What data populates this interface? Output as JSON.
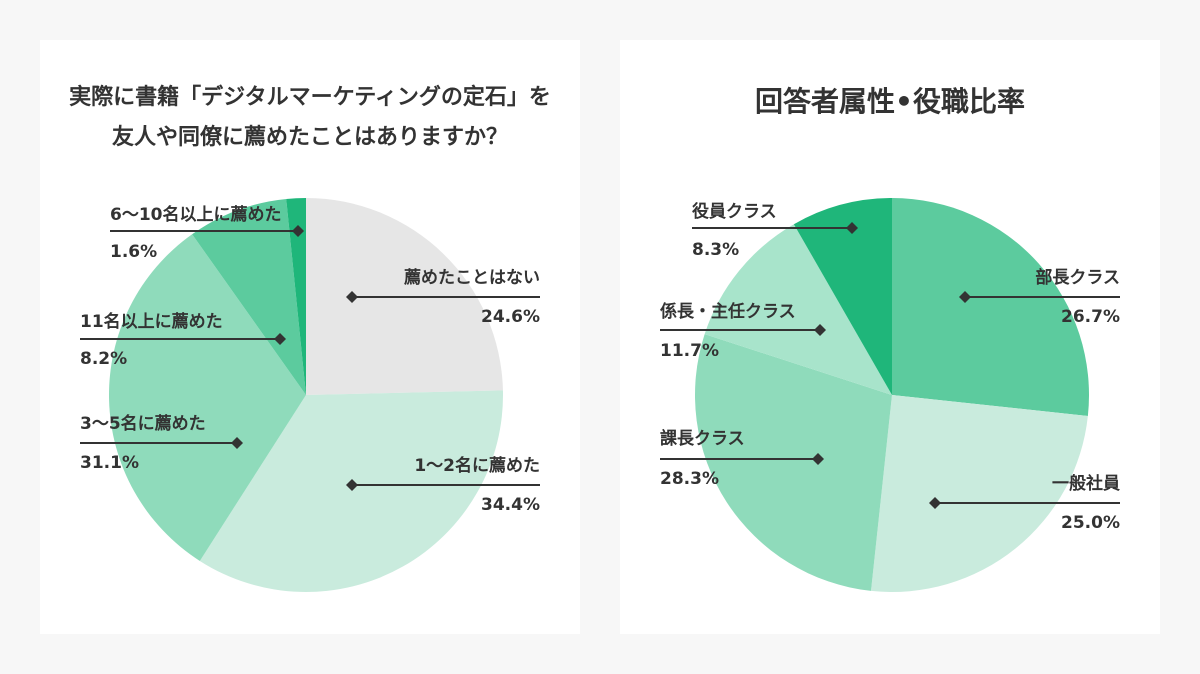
{
  "chart_data": [
    {
      "type": "pie",
      "title": "実際に書籍「デジタルマーケティングの定石」を友人や同僚に薦めたことはありますか？",
      "title_lines": [
        "実際に書籍「デジタルマーケティングの定石」を",
        "友人や同僚に薦めたことはありますか？"
      ],
      "slices": [
        {
          "label": "薦めたことはない",
          "value": 24.6,
          "value_text": "24.6%",
          "color": "#e6e6e6"
        },
        {
          "label": "1〜2名に薦めた",
          "value": 34.4,
          "value_text": "34.4%",
          "color": "#c9ebdd"
        },
        {
          "label": "3〜5名に薦めた",
          "value": 31.1,
          "value_text": "31.1%",
          "color": "#8fdbbb"
        },
        {
          "label": "11名以上に薦めた",
          "value": 8.2,
          "value_text": "8.2%",
          "color": "#5ccb9e"
        },
        {
          "label": "6〜10名以上に薦めた",
          "value": 1.6,
          "value_text": "1.6%",
          "color": "#1fb67a"
        }
      ]
    },
    {
      "type": "pie",
      "title": "回答者属性•役職比率",
      "title_lines": [
        "回答者属性•役職比率"
      ],
      "slices": [
        {
          "label": "部長クラス",
          "value": 26.7,
          "value_text": "26.7%",
          "color": "#5ccb9e"
        },
        {
          "label": "一般社員",
          "value": 25.0,
          "value_text": "25.0%",
          "color": "#c9ebdd"
        },
        {
          "label": "課長クラス",
          "value": 28.3,
          "value_text": "28.3%",
          "color": "#8fdbbb"
        },
        {
          "label": "係長・主任クラス",
          "value": 11.7,
          "value_text": "11.7%",
          "color": "#a8e4cb"
        },
        {
          "label": "役員クラス",
          "value": 8.3,
          "value_text": "8.3%",
          "color": "#1fb67a"
        }
      ]
    }
  ]
}
